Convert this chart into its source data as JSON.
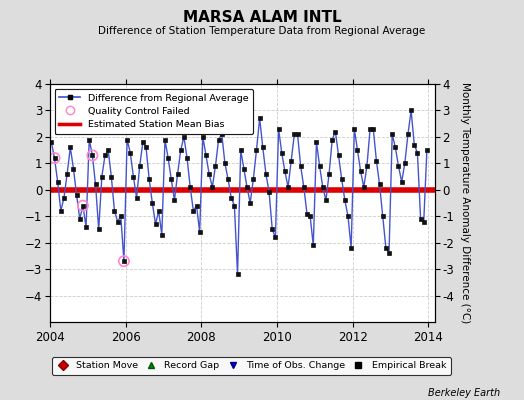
{
  "title": "MARSA ALAM INTL",
  "subtitle": "Difference of Station Temperature Data from Regional Average",
  "ylabel": "Monthly Temperature Anomaly Difference (°C)",
  "xlabel_bottom": "Berkeley Earth",
  "bias_value": 0.0,
  "bias_color": "#dd0000",
  "line_color": "#4455cc",
  "line_fill_color": "#aabbee",
  "marker_color": "#111111",
  "qc_fail_color": "#ff88cc",
  "xlim": [
    2004.0,
    2014.17
  ],
  "ylim": [
    -5,
    4
  ],
  "yticks": [
    -4,
    -3,
    -2,
    -1,
    0,
    1,
    2,
    3,
    4
  ],
  "xticks": [
    2004,
    2006,
    2008,
    2010,
    2012,
    2014
  ],
  "background_color": "#dddddd",
  "plot_bg_color": "#ffffff",
  "times": [
    2004.042,
    2004.125,
    2004.208,
    2004.292,
    2004.375,
    2004.458,
    2004.542,
    2004.625,
    2004.708,
    2004.792,
    2004.875,
    2004.958,
    2005.042,
    2005.125,
    2005.208,
    2005.292,
    2005.375,
    2005.458,
    2005.542,
    2005.625,
    2005.708,
    2005.792,
    2005.875,
    2005.958,
    2006.042,
    2006.125,
    2006.208,
    2006.292,
    2006.375,
    2006.458,
    2006.542,
    2006.625,
    2006.708,
    2006.792,
    2006.875,
    2006.958,
    2007.042,
    2007.125,
    2007.208,
    2007.292,
    2007.375,
    2007.458,
    2007.542,
    2007.625,
    2007.708,
    2007.792,
    2007.875,
    2007.958,
    2008.042,
    2008.125,
    2008.208,
    2008.292,
    2008.375,
    2008.458,
    2008.542,
    2008.625,
    2008.708,
    2008.792,
    2008.875,
    2008.958,
    2009.042,
    2009.125,
    2009.208,
    2009.292,
    2009.375,
    2009.458,
    2009.542,
    2009.625,
    2009.708,
    2009.792,
    2009.875,
    2009.958,
    2010.042,
    2010.125,
    2010.208,
    2010.292,
    2010.375,
    2010.458,
    2010.542,
    2010.625,
    2010.708,
    2010.792,
    2010.875,
    2010.958,
    2011.042,
    2011.125,
    2011.208,
    2011.292,
    2011.375,
    2011.458,
    2011.542,
    2011.625,
    2011.708,
    2011.792,
    2011.875,
    2011.958,
    2012.042,
    2012.125,
    2012.208,
    2012.292,
    2012.375,
    2012.458,
    2012.542,
    2012.625,
    2012.708,
    2012.792,
    2012.875,
    2012.958,
    2013.042,
    2013.125,
    2013.208,
    2013.292,
    2013.375,
    2013.458,
    2013.542,
    2013.625,
    2013.708,
    2013.792,
    2013.875,
    2013.958
  ],
  "values": [
    1.8,
    1.2,
    0.3,
    -0.8,
    -0.3,
    0.6,
    1.6,
    0.8,
    -0.2,
    -1.1,
    -0.6,
    -1.4,
    1.9,
    1.3,
    0.2,
    -1.5,
    0.5,
    1.3,
    1.5,
    0.5,
    -0.8,
    -1.2,
    -1.0,
    -2.7,
    1.9,
    1.4,
    0.5,
    -0.3,
    0.9,
    1.8,
    1.6,
    0.4,
    -0.5,
    -1.3,
    -0.8,
    -1.7,
    1.9,
    1.2,
    0.4,
    -0.4,
    0.6,
    1.5,
    2.0,
    1.2,
    0.1,
    -0.8,
    -0.6,
    -1.6,
    2.0,
    1.3,
    0.6,
    0.1,
    0.9,
    1.9,
    2.1,
    1.0,
    0.4,
    -0.3,
    -0.6,
    -3.2,
    1.5,
    0.8,
    0.1,
    -0.5,
    0.4,
    1.5,
    2.7,
    1.6,
    0.6,
    -0.1,
    -1.5,
    -1.8,
    2.3,
    1.4,
    0.7,
    0.1,
    1.1,
    2.1,
    2.1,
    0.9,
    0.1,
    -0.9,
    -1.0,
    -2.1,
    1.8,
    0.9,
    0.1,
    -0.4,
    0.6,
    1.9,
    2.2,
    1.3,
    0.4,
    -0.4,
    -1.0,
    -2.2,
    2.3,
    1.5,
    0.7,
    0.1,
    0.9,
    2.3,
    2.3,
    1.1,
    0.2,
    -1.0,
    -2.2,
    -2.4,
    2.1,
    1.6,
    0.9,
    0.3,
    1.0,
    2.1,
    3.0,
    1.7,
    1.4,
    -1.1,
    -1.2,
    1.5
  ],
  "qc_fail_times": [
    2004.125,
    2005.125
  ],
  "qc_fail_values": [
    1.2,
    1.3
  ],
  "qc_fail_neg_times": [
    2004.875,
    2005.958
  ],
  "qc_fail_neg_values": [
    -0.6,
    -2.7
  ]
}
